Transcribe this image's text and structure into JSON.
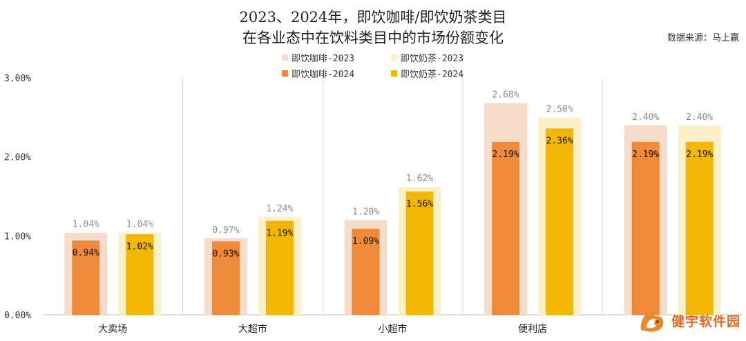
{
  "chart_data": {
    "type": "bar",
    "title_line1": "2023、2024年，即饮咖啡/即饮奶茶类目",
    "title_line2": "在各业态中在饮料类目中的市场份额变化",
    "source": "数据来源：马上赢",
    "categories": [
      "大卖场",
      "大超市",
      "小超市",
      "便利店",
      ""
    ],
    "series": [
      {
        "name": "即饮咖啡-2023",
        "values": [
          1.04,
          0.97,
          1.2,
          2.68,
          2.4
        ],
        "labels": [
          "1.04%",
          "0.97%",
          "1.20%",
          "2.68%",
          "2.40%"
        ],
        "color": "#f5dccb"
      },
      {
        "name": "即饮奶茶-2023",
        "values": [
          1.04,
          1.24,
          1.62,
          2.5,
          2.4
        ],
        "labels": [
          "1.04%",
          "1.24%",
          "1.62%",
          "2.50%",
          "2.40%"
        ],
        "color": "#fdf0c8"
      },
      {
        "name": "即饮咖啡-2024",
        "values": [
          0.94,
          0.93,
          1.09,
          2.19,
          2.19
        ],
        "labels": [
          "0.94%",
          "0.93%",
          "1.09%",
          "2.19%",
          "2.19%"
        ],
        "color": "#ee8a3a"
      },
      {
        "name": "即饮奶茶-2024",
        "values": [
          1.02,
          1.19,
          1.56,
          2.36,
          2.19
        ],
        "labels": [
          "1.02%",
          "1.19%",
          "1.56%",
          "2.36%",
          "2.19%"
        ],
        "color": "#f2b705"
      }
    ],
    "ylim": [
      0,
      3
    ],
    "yticks": [
      "0.00%",
      "1.00%",
      "2.00%",
      "3.00%"
    ],
    "ytick_values": [
      0,
      1,
      2,
      3
    ],
    "xlabel": "",
    "ylabel": "",
    "legend_position": "top",
    "grid": false
  },
  "watermark": {
    "text": "健宇软件园"
  }
}
